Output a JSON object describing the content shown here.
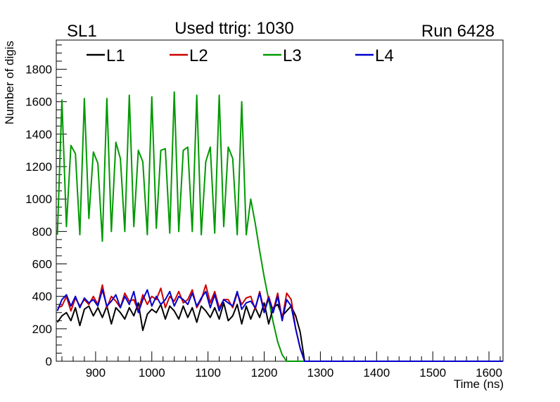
{
  "header": {
    "left": "SL1",
    "center": "Used ttrig: 1030",
    "right": "Run 6428"
  },
  "chart_data": {
    "type": "line",
    "title": "Used ttrig: 1030",
    "xlabel": "Time (ns)",
    "ylabel": "Number of digis",
    "xlim": [
      830,
      1625
    ],
    "ylim": [
      0,
      1980
    ],
    "x_ticks": [
      900,
      1000,
      1100,
      1200,
      1300,
      1400,
      1500,
      1600
    ],
    "y_ticks": [
      0,
      200,
      400,
      600,
      800,
      1000,
      1200,
      1400,
      1600,
      1800
    ],
    "grid": false,
    "legend_position": "top-left, horizontal",
    "x": [
      832,
      840,
      848,
      856,
      864,
      872,
      880,
      888,
      896,
      904,
      912,
      920,
      928,
      936,
      944,
      952,
      960,
      968,
      976,
      984,
      992,
      1000,
      1008,
      1016,
      1024,
      1032,
      1040,
      1048,
      1056,
      1064,
      1072,
      1080,
      1088,
      1096,
      1104,
      1112,
      1120,
      1128,
      1136,
      1144,
      1152,
      1160,
      1168,
      1176,
      1184,
      1192,
      1200,
      1208,
      1216,
      1224,
      1232,
      1240,
      1248,
      1256,
      1264,
      1272,
      1280,
      1300,
      1350,
      1400,
      1450,
      1500,
      1550,
      1600,
      1625
    ],
    "series": [
      {
        "name": "L1",
        "color": "#000000",
        "values": [
          240,
          280,
          300,
          250,
          330,
          220,
          320,
          340,
          280,
          330,
          270,
          340,
          230,
          330,
          300,
          260,
          330,
          280,
          360,
          190,
          290,
          320,
          300,
          350,
          260,
          340,
          310,
          260,
          340,
          270,
          330,
          240,
          340,
          310,
          270,
          330,
          260,
          360,
          250,
          280,
          350,
          230,
          340,
          260,
          330,
          270,
          360,
          230,
          330,
          350,
          280,
          310,
          340,
          280,
          180,
          0,
          0,
          0,
          0,
          0,
          0,
          0,
          0,
          0,
          0
        ]
      },
      {
        "name": "L2",
        "color": "#cc0000",
        "values": [
          330,
          340,
          400,
          310,
          390,
          340,
          380,
          350,
          400,
          350,
          470,
          330,
          400,
          370,
          330,
          420,
          370,
          380,
          310,
          410,
          350,
          400,
          380,
          450,
          330,
          400,
          370,
          430,
          360,
          380,
          440,
          330,
          380,
          470,
          360,
          430,
          330,
          380,
          380,
          330,
          420,
          350,
          390,
          400,
          320,
          430,
          310,
          400,
          310,
          420,
          260,
          420,
          380,
          200,
          80,
          0,
          0,
          0,
          0,
          0,
          0,
          0,
          0,
          0,
          0
        ]
      },
      {
        "name": "L3",
        "color": "#009900",
        "values": [
          780,
          1610,
          830,
          1330,
          1280,
          780,
          1620,
          880,
          1290,
          1220,
          740,
          1620,
          800,
          1350,
          1250,
          800,
          1640,
          830,
          1300,
          1230,
          780,
          1630,
          820,
          1300,
          1310,
          790,
          1660,
          800,
          1300,
          1320,
          800,
          1640,
          780,
          1230,
          1320,
          790,
          1640,
          830,
          1320,
          1250,
          780,
          1600,
          780,
          1000,
          850,
          680,
          520,
          380,
          240,
          120,
          40,
          0,
          0,
          0,
          0,
          0,
          0,
          0,
          0,
          0,
          0,
          0,
          0,
          0,
          0
        ]
      },
      {
        "name": "L4",
        "color": "#0000cc",
        "values": [
          310,
          380,
          410,
          340,
          400,
          330,
          390,
          360,
          380,
          340,
          440,
          340,
          370,
          410,
          330,
          400,
          350,
          430,
          300,
          380,
          440,
          340,
          400,
          350,
          380,
          430,
          340,
          400,
          380,
          350,
          420,
          340,
          390,
          430,
          330,
          410,
          310,
          380,
          360,
          340,
          430,
          320,
          360,
          370,
          330,
          420,
          300,
          390,
          300,
          400,
          250,
          380,
          340,
          200,
          80,
          0,
          0,
          0,
          0,
          0,
          0,
          0,
          0,
          0,
          0
        ]
      }
    ]
  }
}
